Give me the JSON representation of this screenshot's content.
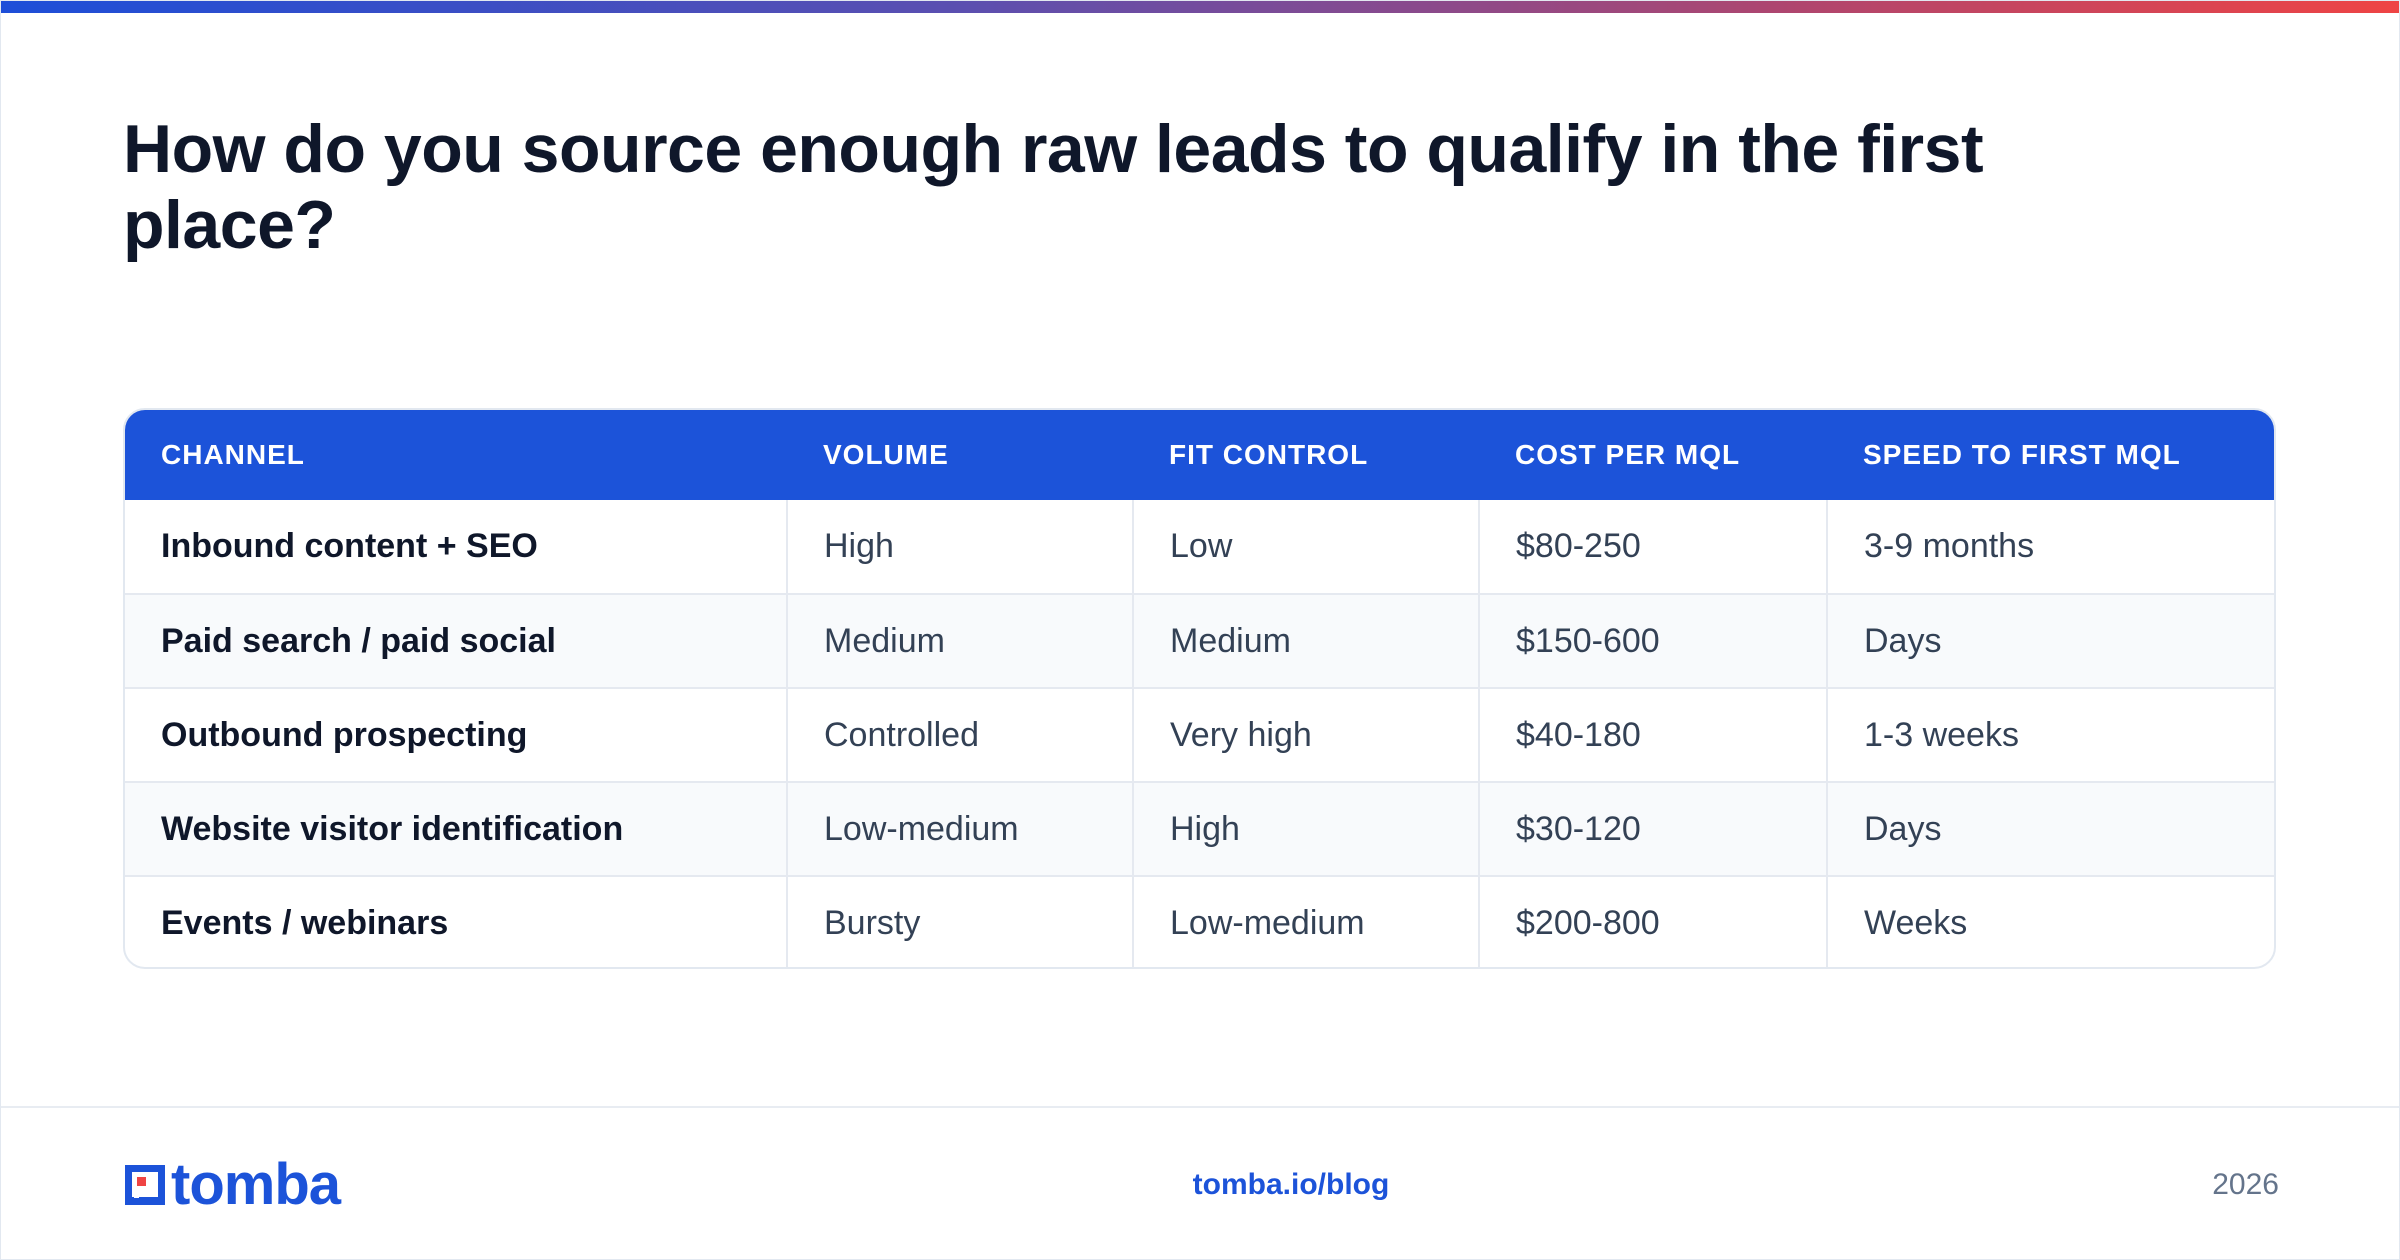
{
  "headline": "How do you source enough raw leads to qualify in the first place?",
  "table": {
    "headers": [
      "CHANNEL",
      "VOLUME",
      "FIT CONTROL",
      "COST PER MQL",
      "SPEED TO FIRST MQL"
    ],
    "rows": [
      [
        "Inbound content + SEO",
        "High",
        "Low",
        "$80-250",
        "3-9 months"
      ],
      [
        "Paid search / paid social",
        "Medium",
        "Medium",
        "$150-600",
        "Days"
      ],
      [
        "Outbound prospecting",
        "Controlled",
        "Very high",
        "$40-180",
        "1-3 weeks"
      ],
      [
        "Website visitor identification",
        "Low-medium",
        "High",
        "$30-120",
        "Days"
      ],
      [
        "Events / webinars",
        "Bursty",
        "Low-medium",
        "$200-800",
        "Weeks"
      ]
    ]
  },
  "footer": {
    "logo_text": "tomba",
    "logo_icon": "tomba-logo-icon",
    "link": "tomba.io/blog",
    "year": "2026"
  },
  "colors": {
    "brand_blue": "#1c53d9",
    "accent_red": "#ef4444",
    "heading": "#0f172a",
    "body_text": "#334155",
    "muted": "#64748b"
  }
}
